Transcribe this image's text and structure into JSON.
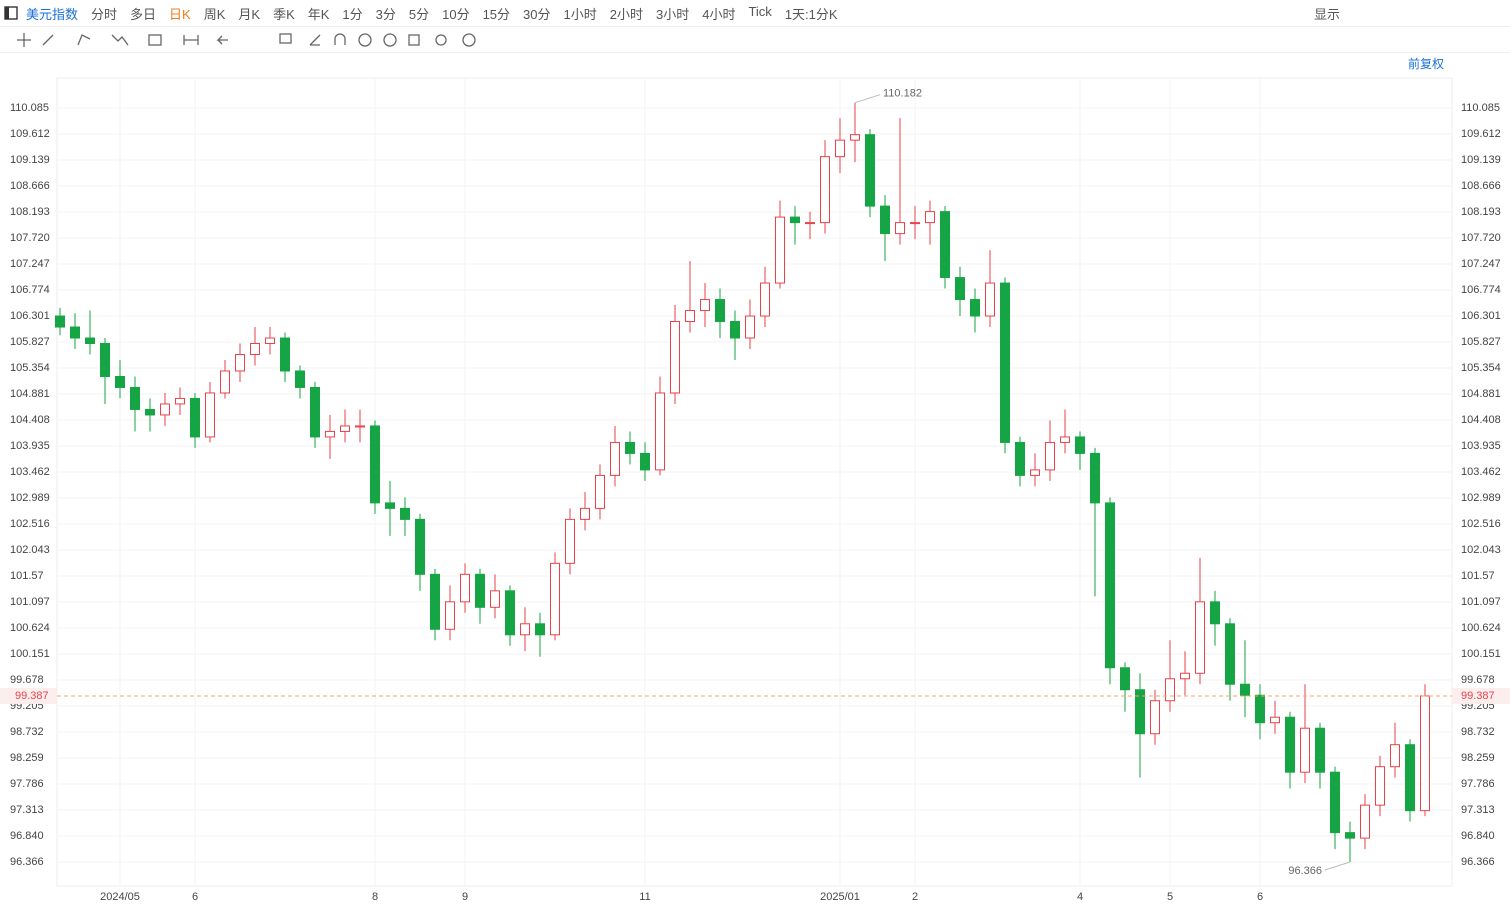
{
  "toolbar": {
    "symbol": "美元指数",
    "periods": [
      "分时",
      "多日",
      "日K",
      "周K",
      "月K",
      "季K",
      "年K",
      "1分",
      "3分",
      "5分",
      "10分",
      "15分",
      "30分",
      "1小时",
      "2小时",
      "3小时",
      "4小时",
      "Tick",
      "1天:1分K"
    ],
    "active_period": "日K",
    "display": "显示"
  },
  "adjust": "前复权",
  "chart_data": {
    "type": "candlestick",
    "categories": [
      null,
      null,
      null,
      null,
      "2024/05",
      null,
      null,
      null,
      null,
      "6",
      null,
      null,
      null,
      null,
      null,
      null,
      null,
      null,
      null,
      null,
      null,
      "8",
      null,
      null,
      null,
      null,
      null,
      "9",
      null,
      null,
      null,
      null,
      null,
      null,
      null,
      null,
      null,
      null,
      null,
      "11",
      null,
      null,
      null,
      null,
      null,
      null,
      null,
      null,
      null,
      null,
      null,
      null,
      "2025/01",
      null,
      null,
      null,
      null,
      "2",
      null,
      null,
      null,
      null,
      null,
      null,
      null,
      null,
      null,
      null,
      "4",
      null,
      null,
      null,
      null,
      null,
      "5",
      null,
      null,
      null,
      null,
      null,
      "6",
      null,
      null,
      null,
      null,
      null,
      null,
      null,
      null,
      null,
      null,
      null
    ],
    "open": [
      106.3,
      106.1,
      105.9,
      105.8,
      105.2,
      105.0,
      104.6,
      104.5,
      104.7,
      104.8,
      104.1,
      104.9,
      105.3,
      105.6,
      105.8,
      105.9,
      105.3,
      105.0,
      104.1,
      104.2,
      104.3,
      104.3,
      102.9,
      102.8,
      102.6,
      101.6,
      100.6,
      101.1,
      101.6,
      101.0,
      101.3,
      100.5,
      100.7,
      100.5,
      101.8,
      102.6,
      102.8,
      103.4,
      104.0,
      103.8,
      103.5,
      104.9,
      106.2,
      106.4,
      106.6,
      106.2,
      105.9,
      106.3,
      106.9,
      108.1,
      108.0,
      108.0,
      109.2,
      109.5,
      109.6,
      108.3,
      107.8,
      108.0,
      108.0,
      108.2,
      107.0,
      106.6,
      106.3,
      106.9,
      104.0,
      103.4,
      103.5,
      104.0,
      104.1,
      103.8,
      102.9,
      99.9,
      99.5,
      98.7,
      99.3,
      99.7,
      99.8,
      101.1,
      100.7,
      99.6,
      99.4,
      98.9,
      99.0,
      98.0,
      98.8,
      98.0,
      96.9,
      96.8,
      97.4,
      98.1,
      98.5,
      97.3
    ],
    "high": [
      106.45,
      106.35,
      106.4,
      105.9,
      105.5,
      105.2,
      104.8,
      104.9,
      105.0,
      104.9,
      105.1,
      105.5,
      105.8,
      106.1,
      106.1,
      106.0,
      105.4,
      105.1,
      104.5,
      104.6,
      104.6,
      104.4,
      103.3,
      103.0,
      102.7,
      101.7,
      101.4,
      101.8,
      101.7,
      101.6,
      101.4,
      101.0,
      100.9,
      102.0,
      102.8,
      103.1,
      103.6,
      104.3,
      104.2,
      104.0,
      105.2,
      106.5,
      107.3,
      106.9,
      106.8,
      106.4,
      106.6,
      107.2,
      108.4,
      108.3,
      108.2,
      109.5,
      109.9,
      110.182,
      109.7,
      108.5,
      109.9,
      108.3,
      108.4,
      108.3,
      107.2,
      106.8,
      107.5,
      107.0,
      104.1,
      103.8,
      104.4,
      104.6,
      104.2,
      103.9,
      103.0,
      100.0,
      99.8,
      99.5,
      100.4,
      100.2,
      101.9,
      101.3,
      100.8,
      100.4,
      99.6,
      99.3,
      99.1,
      99.6,
      98.9,
      98.1,
      97.1,
      97.6,
      98.3,
      98.9,
      98.6,
      99.6
    ],
    "low": [
      105.95,
      105.7,
      105.6,
      104.7,
      104.8,
      104.2,
      104.2,
      104.3,
      104.5,
      103.9,
      104.0,
      104.8,
      105.1,
      105.4,
      105.6,
      105.1,
      104.8,
      103.9,
      103.7,
      104.0,
      104.0,
      102.7,
      102.3,
      102.3,
      101.3,
      100.4,
      100.4,
      100.9,
      100.7,
      100.8,
      100.3,
      100.2,
      100.1,
      100.4,
      101.6,
      102.4,
      102.6,
      103.2,
      103.6,
      103.3,
      103.4,
      104.7,
      106.0,
      106.1,
      105.9,
      105.5,
      105.7,
      106.1,
      106.8,
      107.6,
      107.7,
      107.8,
      108.9,
      109.1,
      108.1,
      107.3,
      107.6,
      107.7,
      107.6,
      106.8,
      106.3,
      106.0,
      106.1,
      103.8,
      103.2,
      103.2,
      103.3,
      103.8,
      103.5,
      101.2,
      99.6,
      99.1,
      97.9,
      98.5,
      99.1,
      99.4,
      99.6,
      100.3,
      99.3,
      99.0,
      98.6,
      98.7,
      97.7,
      97.8,
      97.7,
      96.6,
      96.366,
      96.6,
      97.2,
      97.9,
      97.1,
      97.2
    ],
    "close": [
      106.1,
      105.9,
      105.8,
      105.2,
      105.0,
      104.6,
      104.5,
      104.7,
      104.8,
      104.1,
      104.9,
      105.3,
      105.6,
      105.8,
      105.9,
      105.3,
      105.0,
      104.1,
      104.2,
      104.3,
      104.3,
      102.9,
      102.8,
      102.6,
      101.6,
      100.6,
      101.1,
      101.6,
      101.0,
      101.3,
      100.5,
      100.7,
      100.5,
      101.8,
      102.6,
      102.8,
      103.4,
      104.0,
      103.8,
      103.5,
      104.9,
      106.2,
      106.4,
      106.6,
      106.2,
      105.9,
      106.3,
      106.9,
      108.1,
      108.0,
      108.0,
      109.2,
      109.5,
      109.6,
      108.3,
      107.8,
      108.0,
      108.0,
      108.2,
      107.0,
      106.6,
      106.3,
      106.9,
      104.0,
      103.4,
      103.5,
      104.0,
      104.1,
      103.8,
      102.9,
      99.9,
      99.5,
      98.7,
      99.3,
      99.7,
      99.8,
      101.1,
      100.7,
      99.6,
      99.4,
      98.9,
      99.0,
      98.0,
      98.8,
      98.0,
      96.9,
      96.8,
      97.4,
      98.1,
      98.5,
      97.3,
      99.387
    ],
    "up_color": "#e8434b",
    "down_color": "#16a544",
    "ylim": [
      95.929,
      110.631
    ],
    "yticks": [
      96.366,
      {
        "value": 96.84,
        "label": "96.840"
      },
      97.313,
      97.786,
      98.259,
      98.732,
      99.205,
      99.678,
      100.151,
      100.624,
      101.097,
      101.57,
      102.043,
      102.516,
      102.989,
      103.462,
      103.935,
      104.408,
      104.881,
      105.354,
      105.827,
      106.301,
      106.774,
      107.247,
      {
        "value": 107.72,
        "label": "107.720"
      },
      108.193,
      108.666,
      109.139,
      109.612,
      110.085
    ],
    "grid": true
  }
}
